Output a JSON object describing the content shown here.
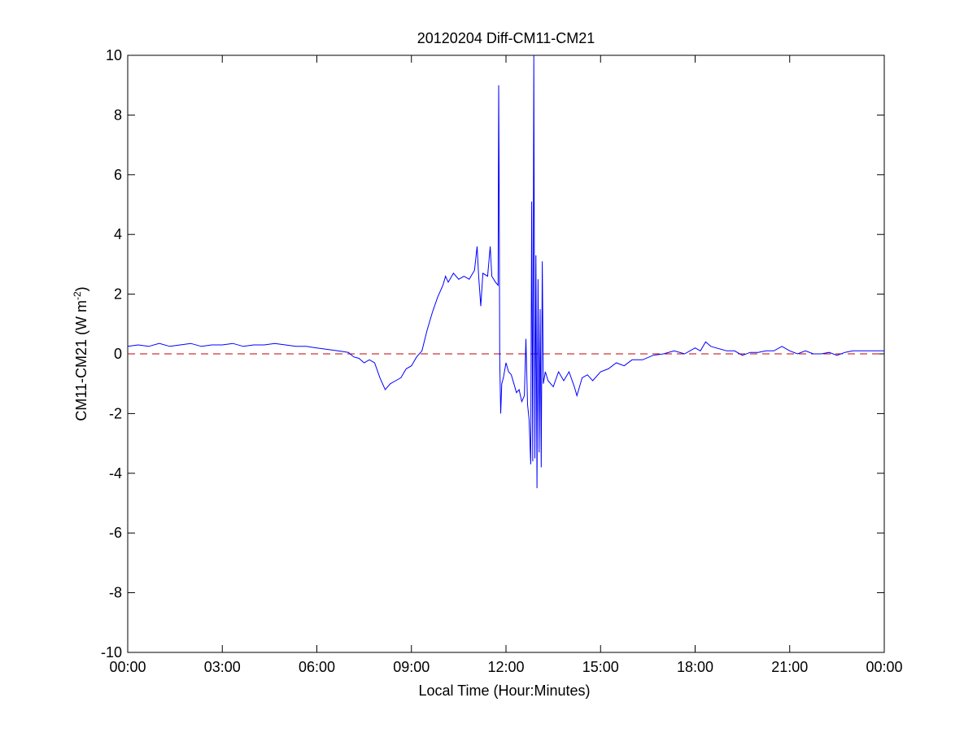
{
  "chart_data": {
    "type": "line",
    "title": "20120204 Diff-CM11-CM21",
    "xlabel": "Local Time (Hour:Minutes)",
    "ylabel": "CM11-CM21 (W m",
    "ylabel_superscript": "-2",
    "ylabel_suffix": ")",
    "xlim": [
      "00:00",
      "24:00"
    ],
    "ylim": [
      -10,
      10
    ],
    "xticks": [
      "00:00",
      "03:00",
      "06:00",
      "09:00",
      "12:00",
      "15:00",
      "18:00",
      "21:00",
      "00:00"
    ],
    "yticks": [
      -10,
      -8,
      -6,
      -4,
      -2,
      0,
      2,
      4,
      6,
      8,
      10
    ],
    "grid": false,
    "reference_line": {
      "y": 0,
      "style": "dashed",
      "color": "#c00000"
    },
    "series": [
      {
        "color": "#0000ff",
        "points": [
          [
            "00:00",
            0.25
          ],
          [
            "00:20",
            0.3
          ],
          [
            "00:40",
            0.25
          ],
          [
            "01:00",
            0.35
          ],
          [
            "01:20",
            0.25
          ],
          [
            "01:40",
            0.3
          ],
          [
            "02:00",
            0.35
          ],
          [
            "02:20",
            0.25
          ],
          [
            "02:40",
            0.3
          ],
          [
            "03:00",
            0.3
          ],
          [
            "03:20",
            0.35
          ],
          [
            "03:40",
            0.25
          ],
          [
            "04:00",
            0.3
          ],
          [
            "04:20",
            0.3
          ],
          [
            "04:40",
            0.35
          ],
          [
            "05:00",
            0.3
          ],
          [
            "05:20",
            0.25
          ],
          [
            "05:40",
            0.25
          ],
          [
            "06:00",
            0.2
          ],
          [
            "06:20",
            0.15
          ],
          [
            "06:40",
            0.1
          ],
          [
            "07:00",
            0.05
          ],
          [
            "07:10",
            -0.1
          ],
          [
            "07:20",
            -0.15
          ],
          [
            "07:30",
            -0.3
          ],
          [
            "07:40",
            -0.2
          ],
          [
            "07:50",
            -0.3
          ],
          [
            "08:00",
            -0.8
          ],
          [
            "08:10",
            -1.2
          ],
          [
            "08:20",
            -1.0
          ],
          [
            "08:30",
            -0.9
          ],
          [
            "08:40",
            -0.8
          ],
          [
            "08:50",
            -0.5
          ],
          [
            "09:00",
            -0.4
          ],
          [
            "09:10",
            -0.1
          ],
          [
            "09:20",
            0.1
          ],
          [
            "09:30",
            0.8
          ],
          [
            "09:40",
            1.4
          ],
          [
            "09:50",
            1.9
          ],
          [
            "10:00",
            2.3
          ],
          [
            "10:05",
            2.6
          ],
          [
            "10:10",
            2.4
          ],
          [
            "10:20",
            2.7
          ],
          [
            "10:30",
            2.5
          ],
          [
            "10:40",
            2.6
          ],
          [
            "10:50",
            2.5
          ],
          [
            "11:00",
            2.8
          ],
          [
            "11:05",
            3.6
          ],
          [
            "11:08",
            2.6
          ],
          [
            "11:12",
            1.6
          ],
          [
            "11:16",
            2.7
          ],
          [
            "11:25",
            2.6
          ],
          [
            "11:30",
            3.6
          ],
          [
            "11:33",
            2.6
          ],
          [
            "11:40",
            2.4
          ],
          [
            "11:45",
            2.3
          ],
          [
            "11:46",
            9.0
          ],
          [
            "11:47",
            5.8
          ],
          [
            "11:48",
            -0.2
          ],
          [
            "11:50",
            -2.0
          ],
          [
            "11:52",
            -1.0
          ],
          [
            "11:55",
            -0.8
          ],
          [
            "12:00",
            -0.3
          ],
          [
            "12:05",
            -0.6
          ],
          [
            "12:10",
            -0.7
          ],
          [
            "12:15",
            -1.0
          ],
          [
            "12:20",
            -1.3
          ],
          [
            "12:25",
            -1.2
          ],
          [
            "12:30",
            -1.6
          ],
          [
            "12:35",
            -1.4
          ],
          [
            "12:38",
            0.5
          ],
          [
            "12:41",
            -1.7
          ],
          [
            "12:44",
            -2.2
          ],
          [
            "12:47",
            -3.7
          ],
          [
            "12:49",
            5.1
          ],
          [
            "12:51",
            -3.6
          ],
          [
            "12:53",
            10.0
          ],
          [
            "12:55",
            -3.5
          ],
          [
            "12:57",
            3.3
          ],
          [
            "12:59",
            -4.5
          ],
          [
            "13:01",
            2.5
          ],
          [
            "13:03",
            -3.3
          ],
          [
            "13:05",
            1.5
          ],
          [
            "13:07",
            -3.8
          ],
          [
            "13:09",
            3.1
          ],
          [
            "13:11",
            -1.0
          ],
          [
            "13:15",
            -0.6
          ],
          [
            "13:20",
            -0.9
          ],
          [
            "13:30",
            -1.1
          ],
          [
            "13:40",
            -0.6
          ],
          [
            "13:50",
            -0.9
          ],
          [
            "14:00",
            -0.6
          ],
          [
            "14:10",
            -1.1
          ],
          [
            "14:15",
            -1.4
          ],
          [
            "14:25",
            -0.8
          ],
          [
            "14:35",
            -0.7
          ],
          [
            "14:45",
            -0.9
          ],
          [
            "15:00",
            -0.6
          ],
          [
            "15:15",
            -0.5
          ],
          [
            "15:30",
            -0.3
          ],
          [
            "15:45",
            -0.4
          ],
          [
            "16:00",
            -0.2
          ],
          [
            "16:20",
            -0.2
          ],
          [
            "16:40",
            -0.05
          ],
          [
            "17:00",
            0.0
          ],
          [
            "17:20",
            0.1
          ],
          [
            "17:40",
            0.0
          ],
          [
            "18:00",
            0.2
          ],
          [
            "18:10",
            0.1
          ],
          [
            "18:20",
            0.4
          ],
          [
            "18:30",
            0.25
          ],
          [
            "18:40",
            0.2
          ],
          [
            "19:00",
            0.1
          ],
          [
            "19:15",
            0.1
          ],
          [
            "19:30",
            -0.05
          ],
          [
            "19:45",
            0.05
          ],
          [
            "20:00",
            0.05
          ],
          [
            "20:15",
            0.1
          ],
          [
            "20:30",
            0.1
          ],
          [
            "20:45",
            0.25
          ],
          [
            "21:00",
            0.1
          ],
          [
            "21:15",
            0.0
          ],
          [
            "21:30",
            0.1
          ],
          [
            "21:45",
            0.0
          ],
          [
            "22:00",
            0.0
          ],
          [
            "22:15",
            0.05
          ],
          [
            "22:30",
            -0.05
          ],
          [
            "22:45",
            0.05
          ],
          [
            "23:00",
            0.1
          ],
          [
            "23:30",
            0.1
          ],
          [
            "24:00",
            0.1
          ]
        ]
      }
    ]
  }
}
